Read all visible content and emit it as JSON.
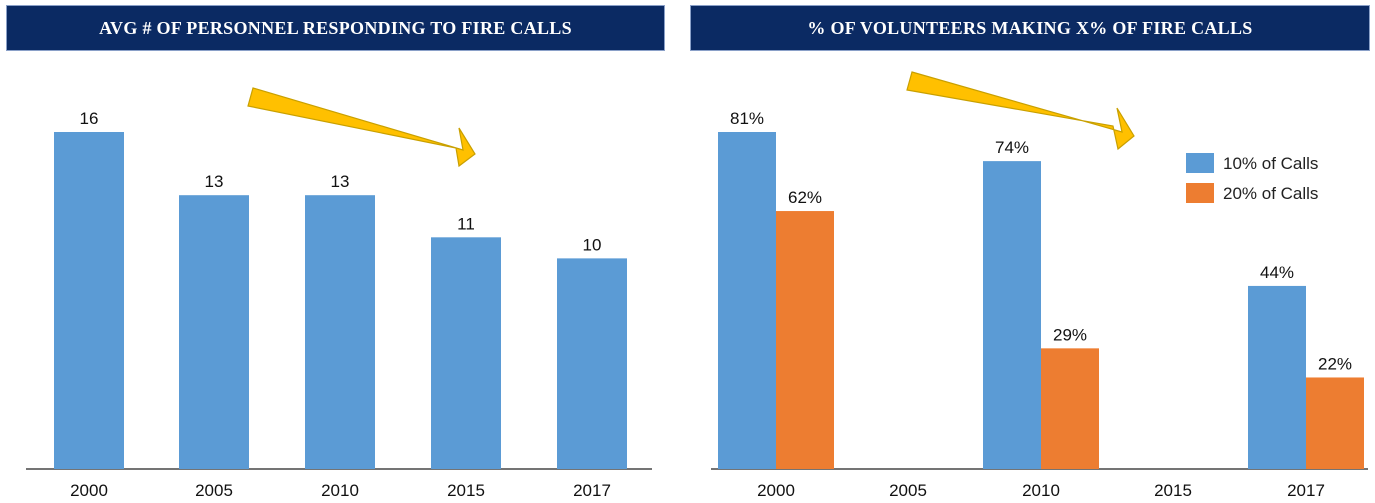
{
  "colors": {
    "header_bg": "#0b2a63",
    "bar_blue": "#5b9bd5",
    "bar_orange": "#ed7d31",
    "arrow_fill": "#ffc000",
    "arrow_stroke": "#c9a000"
  },
  "chart_data": [
    {
      "type": "bar",
      "title": "AVG # OF PERSONNEL RESPONDING TO FIRE CALLS",
      "categories": [
        "2000",
        "2005",
        "2010",
        "2015",
        "2017"
      ],
      "values": [
        16,
        13,
        13,
        11,
        10
      ],
      "value_labels": [
        "16",
        "13",
        "13",
        "11",
        "10"
      ],
      "ylim": [
        0,
        16
      ],
      "grid": false,
      "annotation": "downward-trend-arrow"
    },
    {
      "type": "bar",
      "title": "% OF VOLUNTEERS MAKING X% OF FIRE CALLS",
      "categories": [
        "2000",
        "2005",
        "2010",
        "2015",
        "2017"
      ],
      "series": [
        {
          "name": "10% of Calls",
          "values": [
            81,
            null,
            74,
            null,
            44
          ],
          "labels": [
            "81%",
            "",
            "74%",
            "",
            "44%"
          ]
        },
        {
          "name": "20% of Calls",
          "values": [
            62,
            null,
            29,
            null,
            22
          ],
          "labels": [
            "62%",
            "",
            "29%",
            "",
            "22%"
          ]
        }
      ],
      "ylim": [
        0,
        81
      ],
      "grid": false,
      "legend": "top-right",
      "annotation": "downward-trend-arrow"
    }
  ]
}
